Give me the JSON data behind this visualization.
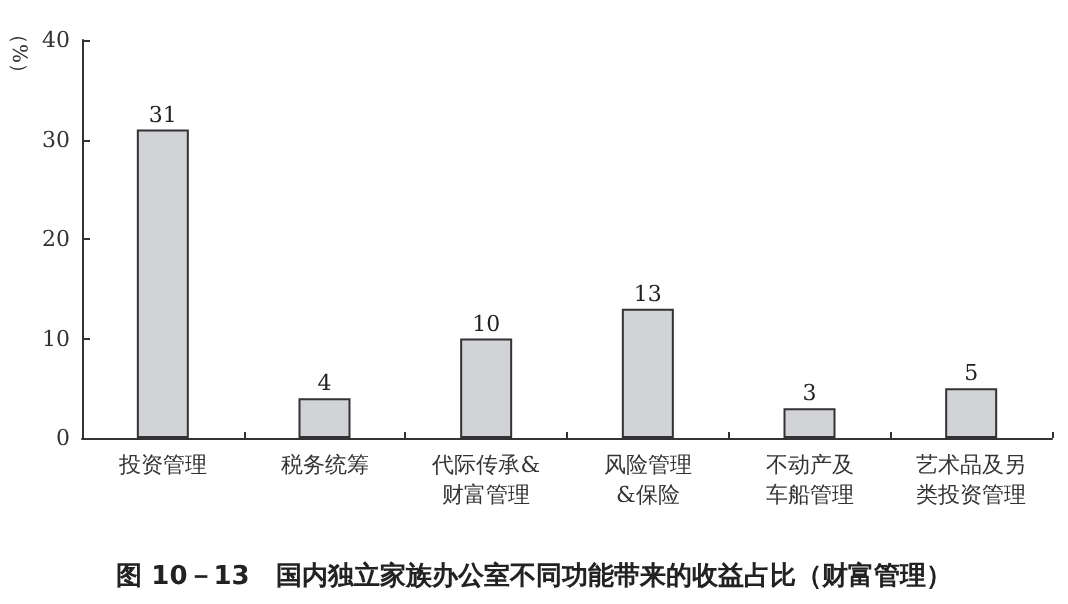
{
  "chart_data": {
    "type": "bar",
    "title": "图 10－13　国内独立家族办公室不同功能带来的收益占比（财富管理）",
    "ylabel": "（%）",
    "categories": [
      "投资管理",
      "税务统筹",
      "代际传承&财富管理",
      "风险管理&保险",
      "不动产及车船管理",
      "艺术品及另类投资管理"
    ],
    "values": [
      31,
      4,
      10,
      13,
      3,
      5
    ],
    "color": "#d2d3d7",
    "ylim": [
      0,
      40
    ],
    "yticks": [
      0,
      10,
      20,
      30,
      40
    ],
    "grid": false,
    "data_labels": true
  }
}
